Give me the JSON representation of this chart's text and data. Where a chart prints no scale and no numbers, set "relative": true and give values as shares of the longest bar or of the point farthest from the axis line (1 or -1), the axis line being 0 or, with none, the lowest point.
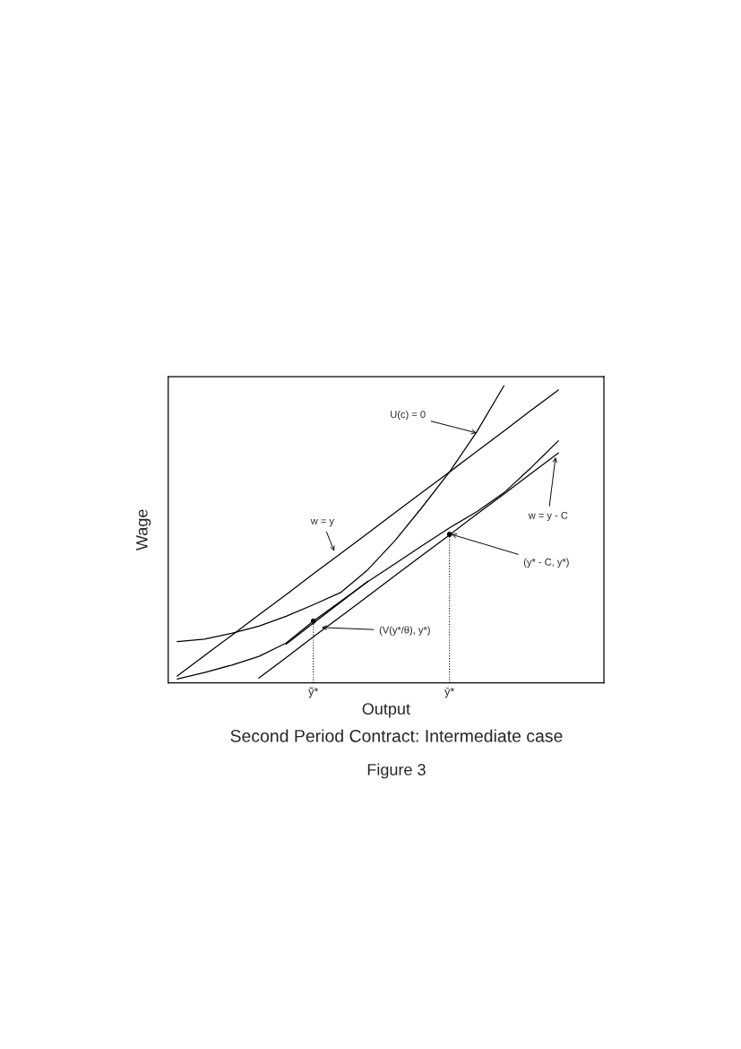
{
  "chart_data": {
    "type": "line",
    "relative": true,
    "xlabel": "Output",
    "ylabel": "Wage",
    "categories": [
      null,
      null,
      null,
      null,
      null,
      "ỹ*",
      null,
      null,
      null,
      null,
      "ȳ*",
      null,
      null,
      null,
      null,
      null
    ],
    "tick_labels": "x",
    "grid": false,
    "legend": false,
    "series": [
      {
        "color": "#000000",
        "values": [
          0.023,
          0.092,
          0.16,
          0.229,
          0.297,
          0.367,
          0.435,
          0.504,
          0.573,
          0.642,
          0.71,
          0.779,
          0.848,
          0.918,
          0.986,
          null
        ]
      },
      {
        "color": "#000000",
        "values": [
          0.139,
          0.147,
          0.167,
          0.191,
          0.224,
          0.263,
          0.304,
          0.381,
          0.479,
          0.592,
          0.71,
          0.845,
          1,
          null,
          null,
          null
        ]
      },
      {
        "color": "#000000",
        "values": [
          0.013,
          0.035,
          0.06,
          0.089,
          0.134,
          0.208,
          0.274,
          0.341,
          0.401,
          0.462,
          0.522,
          0.576,
          0.64,
          0.725,
          0.815,
          null
        ]
      },
      {
        "color": "#000000",
        "values": [
          null,
          null,
          null,
          0.016,
          0.085,
          0.155,
          0.223,
          0.292,
          0.361,
          0.43,
          0.498,
          0.568,
          0.636,
          0.705,
          0.774,
          null
        ]
      },
      {
        "color": "#000000",
        "values": [
          null,
          null,
          null,
          null,
          0.13,
          0.201,
          0.271,
          0.342,
          null,
          null,
          null,
          null,
          null,
          null,
          null,
          null
        ]
      },
      {
        "type": "lollipop",
        "color": "#000000",
        "marker": "circle",
        "line_style": "dotted",
        "values": [
          null,
          null,
          null,
          null,
          null,
          0.208,
          null,
          null,
          null,
          null,
          0.5,
          null,
          null,
          null,
          null,
          null
        ]
      }
    ],
    "annotations": [
      "U(c) = 0",
      "w = y",
      "w = y - C",
      "(y* - C, y*)",
      "(V(y*/θ), y*)",
      "Second Period Contract: Intermediate case",
      "Figure 3"
    ]
  }
}
